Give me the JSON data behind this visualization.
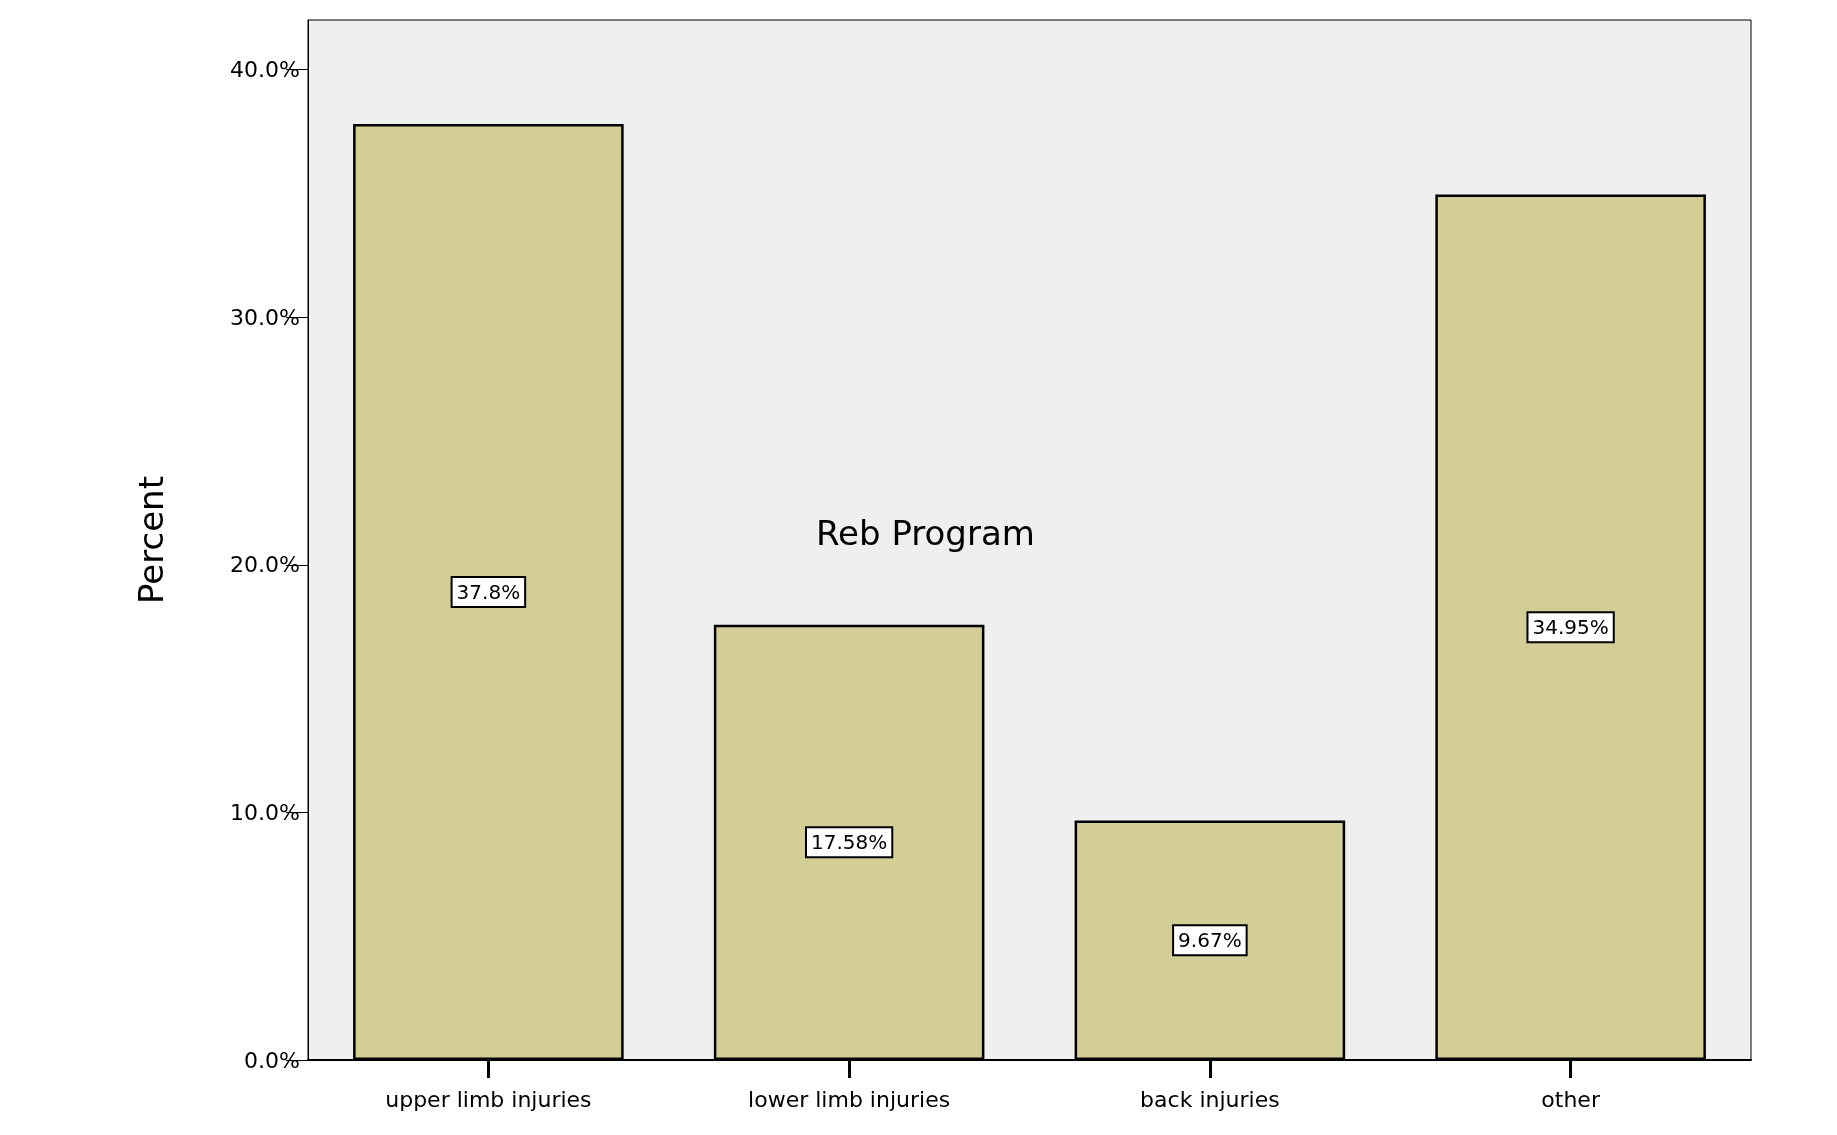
{
  "chart_data": {
    "type": "bar",
    "title": "Reb Program",
    "ylabel": "Percent",
    "categories": [
      "upper limb injuries",
      "lower limb injuries",
      "back injuries",
      "other"
    ],
    "values": [
      37.8,
      17.58,
      9.67,
      34.95
    ],
    "value_labels": [
      "37.8%",
      "17.58%",
      "9.67%",
      "34.95%"
    ],
    "color": "#d3cd96",
    "ylim": [
      0,
      42
    ],
    "yticks": [
      {
        "value": 0,
        "label": "0.0%"
      },
      {
        "value": 10,
        "label": "10.0%"
      },
      {
        "value": 20,
        "label": "20.0%"
      },
      {
        "value": 30,
        "label": "30.0%"
      },
      {
        "value": 40,
        "label": "40.0%"
      }
    ],
    "grid": false
  }
}
